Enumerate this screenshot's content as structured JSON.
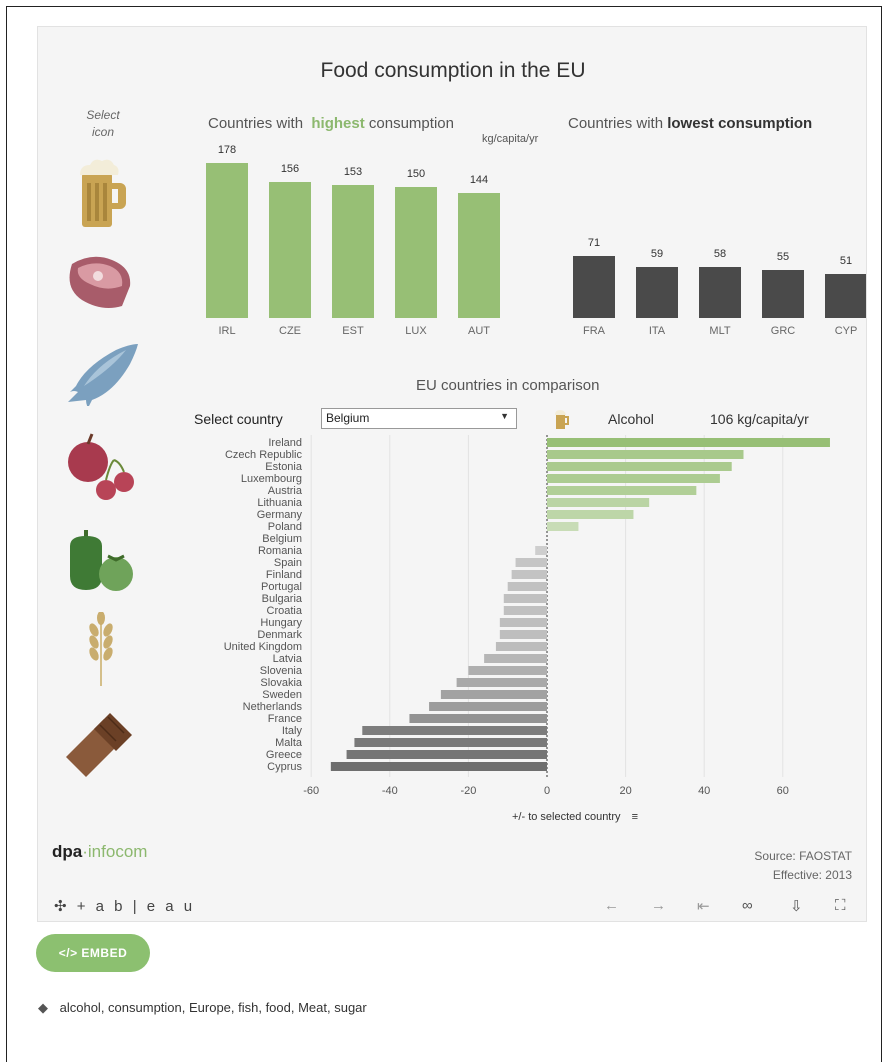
{
  "viz": {
    "title": "Food consumption in the EU",
    "select_icon_label": "Select icon",
    "header_highest_prefix": "Countries with",
    "header_highest_word": "highest",
    "header_highest_suffix": "consumption",
    "header_lowest_prefix": "Countries with",
    "header_lowest_bold": "lowest consumption",
    "unit": "kg/capita/yr",
    "comparison_title": "EU countries in comparison",
    "select_country_label": "Select country",
    "selected_country": "Belgium",
    "category_label": "Alcohol",
    "category_value": "106 kg/capita/yr",
    "axis_title": "+/- to selected country",
    "brand_a": "dpa",
    "brand_b": "infocom",
    "source": "Source: FAOSTAT",
    "effective": "Effective: 2013",
    "toolbar_logo": "+ a b | e a u"
  },
  "colors": {
    "green": "#97bf75",
    "dark": "#4a4a4a"
  },
  "icons": [
    "beer-icon",
    "meat-icon",
    "fish-icon",
    "fruit-icon",
    "vegetable-icon",
    "grain-icon",
    "chocolate-icon"
  ],
  "toolbar_icons": [
    "undo-icon",
    "redo-icon",
    "revert-icon",
    "share-icon",
    "download-icon",
    "fullscreen-icon"
  ],
  "embed_label": "</> EMBED",
  "tags": "alcohol, consumption, Europe, fish, food, Meat, sugar",
  "chart_data": [
    {
      "type": "bar",
      "categories": [
        "IRL",
        "CZE",
        "EST",
        "LUX",
        "AUT"
      ],
      "values": [
        178,
        156,
        153,
        150,
        144
      ],
      "ylim": [
        0,
        178
      ]
    },
    {
      "type": "bar",
      "categories": [
        "FRA",
        "ITA",
        "MLT",
        "GRC",
        "CYP"
      ],
      "values": [
        71,
        59,
        58,
        55,
        51
      ],
      "ylim": [
        0,
        178
      ]
    },
    {
      "type": "bar",
      "orientation": "horizontal",
      "categories": [
        "Ireland",
        "Czech Republic",
        "Estonia",
        "Luxembourg",
        "Austria",
        "Lithuania",
        "Germany",
        "Poland",
        "Belgium",
        "Romania",
        "Spain",
        "Finland",
        "Portugal",
        "Bulgaria",
        "Croatia",
        "Hungary",
        "Denmark",
        "United Kingdom",
        "Latvia",
        "Slovenia",
        "Slovakia",
        "Sweden",
        "Netherlands",
        "France",
        "Italy",
        "Malta",
        "Greece",
        "Cyprus"
      ],
      "values": [
        72,
        50,
        47,
        44,
        38,
        26,
        22,
        8,
        0,
        -3,
        -8,
        -9,
        -10,
        -11,
        -11,
        -12,
        -12,
        -13,
        -16,
        -20,
        -23,
        -27,
        -30,
        -35,
        -47,
        -49,
        -51,
        -55
      ],
      "xlim": [
        -60,
        72
      ],
      "xticks": [
        -60,
        -40,
        -20,
        0,
        20,
        40,
        60
      ],
      "grid": true
    }
  ]
}
